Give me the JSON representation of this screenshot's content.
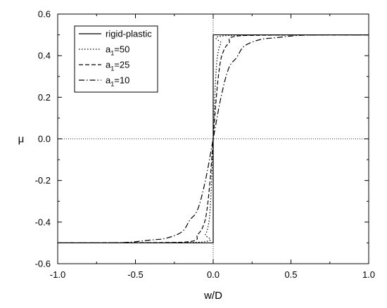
{
  "chart_data": {
    "type": "line",
    "xlabel": "w/D",
    "ylabel": "μ",
    "xlim": [
      -1.0,
      1.0
    ],
    "ylim": [
      -0.6,
      0.6
    ],
    "x_ticks": [
      "-1.0",
      "-0.5",
      "0.0",
      "0.5",
      "1.0"
    ],
    "y_ticks": [
      "-0.6",
      "-0.4",
      "-0.2",
      "0.0",
      "0.2",
      "0.4",
      "0.6"
    ],
    "grid": false,
    "legend_position": "top-left",
    "reference_lines": [
      {
        "orientation": "horizontal",
        "value": 0.0,
        "style": "dotted"
      },
      {
        "orientation": "vertical",
        "value": 0.0,
        "style": "dotted"
      }
    ],
    "series": [
      {
        "name": "rigid-plastic",
        "label_main": "rigid-plastic",
        "label_sub": "",
        "style": "solid",
        "x": [
          -1.0,
          0.0,
          0.0,
          1.0
        ],
        "y": [
          -0.5,
          -0.5,
          0.5,
          0.5
        ]
      },
      {
        "name": "a1=50",
        "label_main": "a",
        "label_sub": "1",
        "label_rest": "=50",
        "style": "dotted",
        "x": [
          -1.0,
          -0.1,
          -0.05,
          -0.03,
          -0.02,
          -0.01,
          0.0,
          0.01,
          0.02,
          0.03,
          0.05,
          0.1,
          1.0
        ],
        "y": [
          -0.5,
          -0.497,
          -0.459,
          -0.41,
          -0.34,
          -0.2,
          0.0,
          0.2,
          0.34,
          0.41,
          0.459,
          0.497,
          0.5
        ]
      },
      {
        "name": "a1=25",
        "label_main": "a",
        "label_sub": "1",
        "label_rest": "=25",
        "style": "dashed",
        "x": [
          -1.0,
          -0.2,
          -0.1,
          -0.06,
          -0.04,
          -0.02,
          0.0,
          0.02,
          0.04,
          0.06,
          0.1,
          0.2,
          1.0
        ],
        "y": [
          -0.5,
          -0.497,
          -0.459,
          -0.41,
          -0.34,
          -0.2,
          0.0,
          0.2,
          0.34,
          0.41,
          0.459,
          0.497,
          0.5
        ]
      },
      {
        "name": "a1=10",
        "label_main": "a",
        "label_sub": "1",
        "label_rest": "=10",
        "style": "dashdot",
        "x": [
          -1.0,
          -0.6,
          -0.4,
          -0.3,
          -0.2,
          -0.15,
          -0.1,
          -0.05,
          0.0,
          0.05,
          0.1,
          0.15,
          0.2,
          0.3,
          0.4,
          0.6,
          1.0
        ],
        "y": [
          -0.5,
          -0.499,
          -0.486,
          -0.477,
          -0.446,
          -0.39,
          -0.34,
          -0.2,
          0.0,
          0.2,
          0.34,
          0.39,
          0.446,
          0.477,
          0.486,
          0.499,
          0.5
        ]
      }
    ]
  }
}
